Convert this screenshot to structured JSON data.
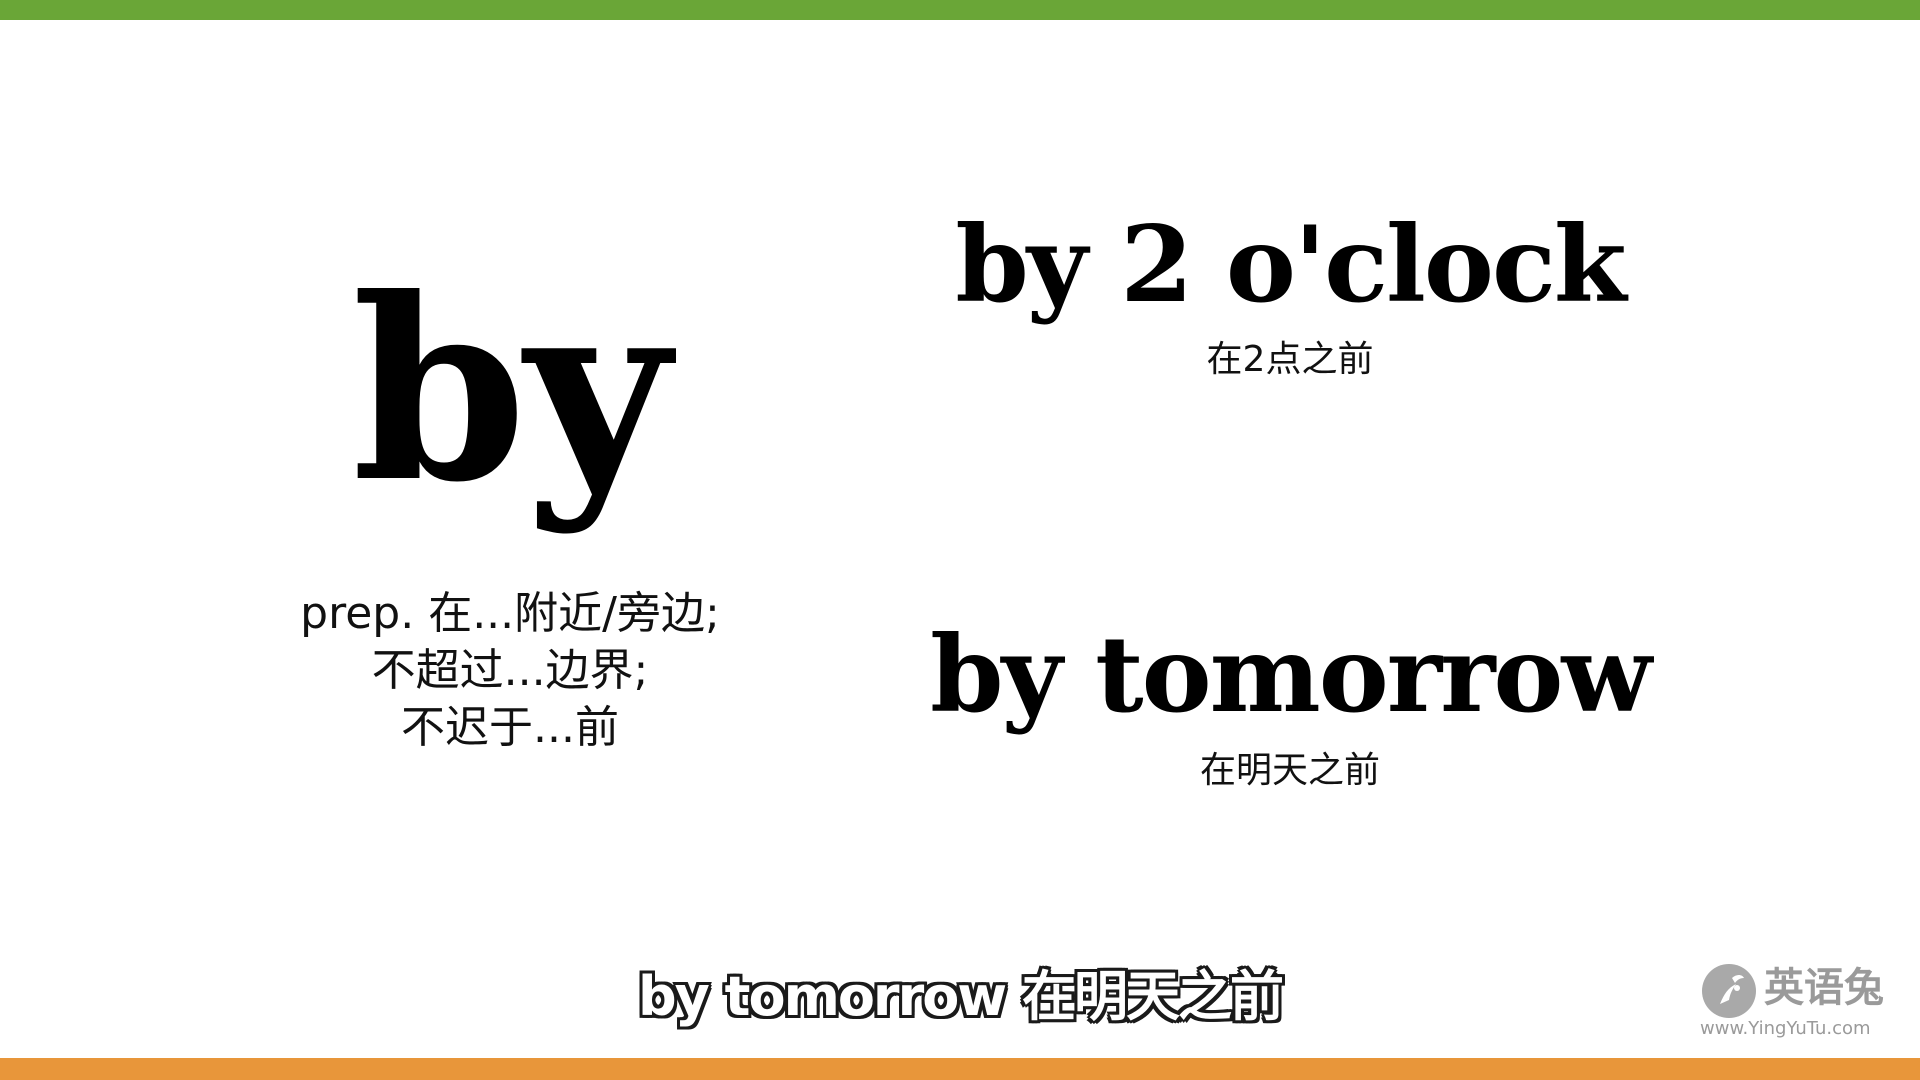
{
  "colors": {
    "top_bar": "#6aa637",
    "bottom_bar": "#e8963a",
    "background": "#ffffff",
    "text": "#000000",
    "logo": "#9a9a9a"
  },
  "main": {
    "word": "by",
    "definition_lines": [
      "prep. 在...附近/旁边;",
      "不超过...边界;",
      "不迟于...前"
    ]
  },
  "examples": [
    {
      "phrase": "by 2 o'clock",
      "translation": "在2点之前"
    },
    {
      "phrase": "by tomorrow",
      "translation": "在明天之前"
    }
  ],
  "subtitle": "by tomorrow 在明天之前",
  "watermark": {
    "icon": "rabbit-logo-icon",
    "name": "英语兔",
    "url": "www.YingYuTu.com"
  }
}
